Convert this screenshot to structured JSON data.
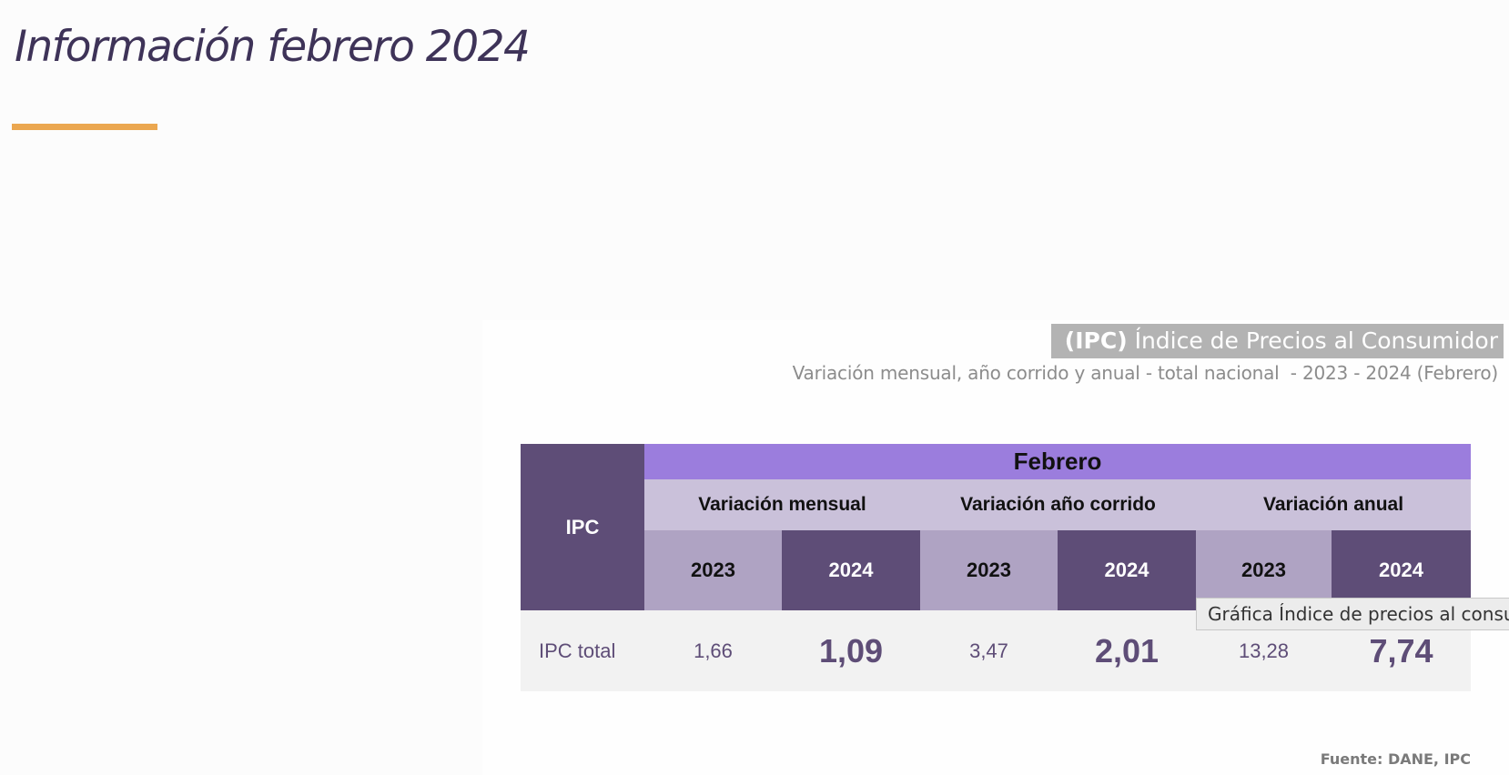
{
  "page": {
    "title": "Información febrero 2024",
    "accent_color": "#eba750",
    "title_color": "#3e3358"
  },
  "chart": {
    "title_bold": "(IPC)",
    "title_rest": " Índice de Precios al Consumidor",
    "subtitle": "Variación mensual, año corrido y anual - total nacional  - 2023 - 2024 (Febrero)",
    "source": "Fuente: DANE, IPC"
  },
  "table": {
    "corner_label": "IPC",
    "month": "Febrero",
    "groups": [
      "Variación mensual",
      "Variación año corrido",
      "Variación anual"
    ],
    "years": [
      "2023",
      "2024",
      "2023",
      "2024",
      "2023",
      "2024"
    ],
    "row_label": "IPC total",
    "values": [
      "1,66",
      "1,09",
      "3,47",
      "2,01",
      "13,28",
      "7,74"
    ],
    "colors": {
      "dark_purple": "#5e4d77",
      "violet": "#9b7ddd",
      "light_lavender": "#cac1da",
      "mid_lavender": "#afa3c3",
      "row_bg": "#f2f2f2"
    }
  },
  "tooltip": {
    "text": "Gráfica Índice de precios al consumidor"
  }
}
